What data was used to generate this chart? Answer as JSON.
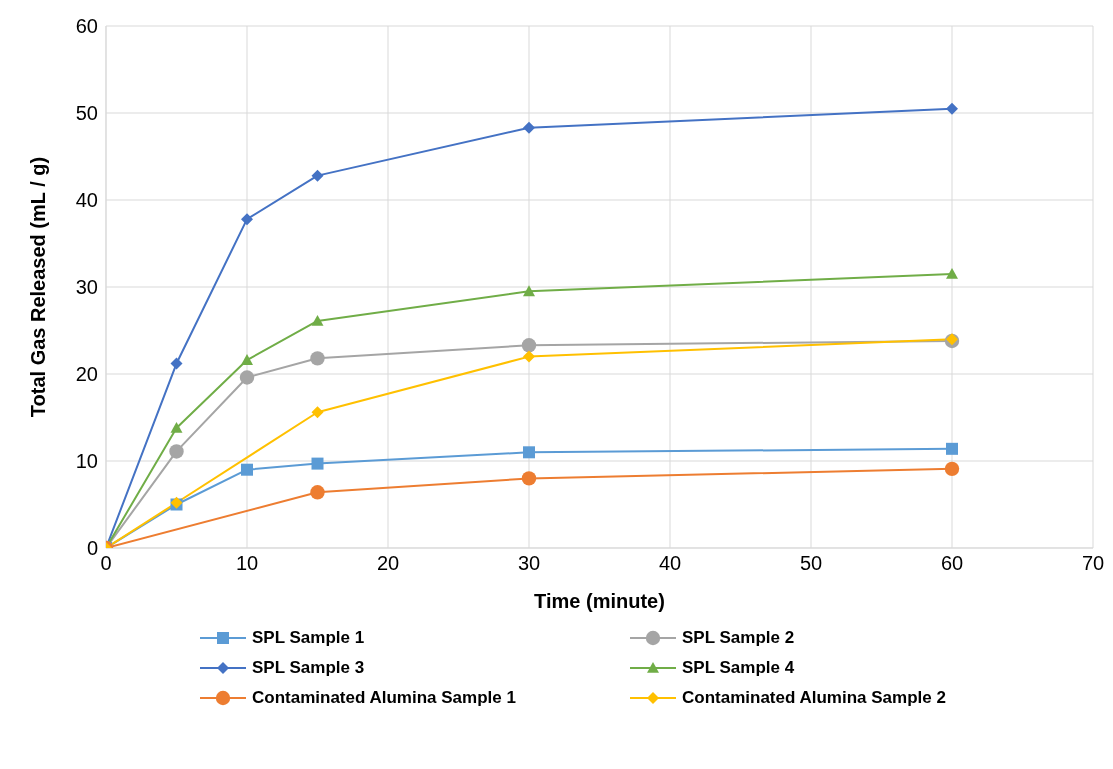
{
  "chart_data": {
    "type": "line",
    "xlabel": "Time (minute)",
    "ylabel": "Total Gas Released (mL / g)",
    "xlim": [
      0,
      70
    ],
    "xticks": [
      0,
      10,
      20,
      30,
      40,
      50,
      60,
      70
    ],
    "ylim": [
      0,
      60
    ],
    "yticks": [
      0,
      10,
      20,
      30,
      40,
      50,
      60
    ],
    "grid": true,
    "legend": "bottom",
    "line_style": "solid",
    "series": [
      {
        "name": "SPL Sample 1",
        "color": "#5b9bd5",
        "marker": "square",
        "x": [
          0,
          5,
          10,
          15,
          30,
          60
        ],
        "values": [
          0,
          5.0,
          9.0,
          9.7,
          11.0,
          11.4
        ]
      },
      {
        "name": "SPL Sample 2",
        "color": "#a5a5a5",
        "marker": "circle",
        "x": [
          0,
          5,
          10,
          15,
          30,
          60
        ],
        "values": [
          0,
          11.1,
          19.6,
          21.8,
          23.3,
          23.8
        ]
      },
      {
        "name": "SPL Sample 3",
        "color": "#4472c4",
        "marker": "diamond",
        "x": [
          0,
          5,
          10,
          15,
          30,
          60
        ],
        "values": [
          0,
          21.2,
          37.8,
          42.8,
          48.3,
          50.5
        ]
      },
      {
        "name": "SPL Sample 4",
        "color": "#70ad47",
        "marker": "triangle",
        "x": [
          0,
          5,
          10,
          15,
          30,
          60
        ],
        "values": [
          0,
          13.8,
          21.6,
          26.1,
          29.5,
          31.5
        ]
      },
      {
        "name": "Contaminated Alumina Sample 1",
        "color": "#ed7d31",
        "marker": "circle",
        "x": [
          0,
          15,
          30,
          60
        ],
        "values": [
          0,
          6.4,
          8.0,
          9.1
        ]
      },
      {
        "name": "Contaminated Alumina Sample 2",
        "color": "#ffc000",
        "marker": "diamond",
        "x": [
          0,
          5,
          15,
          30,
          60
        ],
        "values": [
          0,
          5.2,
          15.6,
          22.0,
          24.0
        ]
      }
    ]
  }
}
